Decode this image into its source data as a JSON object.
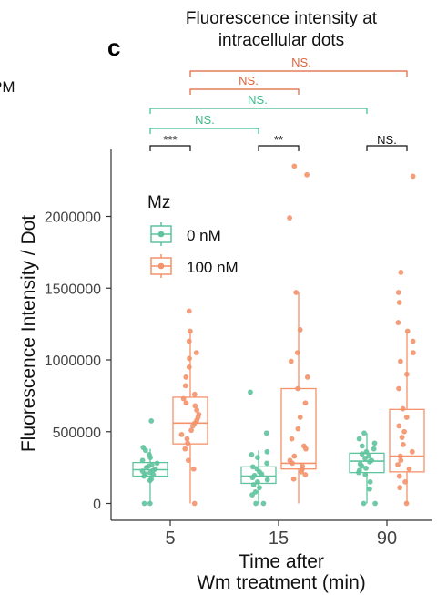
{
  "panel": {
    "letter": "c",
    "left_fragment": "PM"
  },
  "chart_data": {
    "type": "box",
    "title_lines": [
      "Fluorescence intensity at",
      "intracellular dots"
    ],
    "xlabel_lines": [
      "Time after",
      "Wm treatment (min)"
    ],
    "ylabel": "Fluorescence Intensity / Dot",
    "categories": [
      "5",
      "15",
      "90"
    ],
    "ylim": [
      -120000,
      2480000
    ],
    "yticks": [
      0,
      500000,
      1000000,
      1500000,
      2000000
    ],
    "ytick_labels": [
      "0",
      "500000",
      "1000000",
      "1500000",
      "2000000"
    ],
    "grid": false,
    "legend": {
      "title": "Mz",
      "placement": "upper-left inside plot",
      "entries": [
        {
          "label": "0 nM",
          "color": "#5fc39d"
        },
        {
          "label": "100 nM",
          "color": "#f4926a"
        }
      ]
    },
    "series": [
      {
        "name": "0 nM",
        "color": "#5fc39d",
        "boxes": [
          {
            "q1": 190000,
            "median": 235000,
            "q3": 285000,
            "whisker_low": 0,
            "whisker_high": 380000
          },
          {
            "q1": 140000,
            "median": 190000,
            "q3": 255000,
            "whisker_low": 0,
            "whisker_high": 370000
          },
          {
            "q1": 215000,
            "median": 295000,
            "q3": 350000,
            "whisker_low": 0,
            "whisker_high": 490000
          }
        ],
        "points": [
          [
            0,
            575000,
            390000,
            370000,
            340000,
            320000,
            300000,
            280000,
            270000,
            260000,
            250000,
            240000,
            230000,
            225000,
            215000,
            205000,
            200000,
            190000,
            170000,
            160000,
            0
          ],
          [
            775000,
            490000,
            360000,
            340000,
            320000,
            280000,
            255000,
            240000,
            220000,
            205000,
            195000,
            180000,
            165000,
            150000,
            130000,
            110000,
            80000,
            60000,
            0,
            0
          ],
          [
            490000,
            450000,
            420000,
            400000,
            380000,
            360000,
            345000,
            330000,
            315000,
            300000,
            290000,
            275000,
            260000,
            245000,
            230000,
            215000,
            200000,
            150000,
            100000,
            0,
            0
          ]
        ]
      },
      {
        "name": "100 nM",
        "color": "#f4926a",
        "boxes": [
          {
            "q1": 415000,
            "median": 560000,
            "q3": 740000,
            "whisker_low": 0,
            "whisker_high": 1200000
          },
          {
            "q1": 240000,
            "median": 280000,
            "q3": 800000,
            "whisker_low": 0,
            "whisker_high": 1470000
          },
          {
            "q1": 220000,
            "median": 330000,
            "q3": 655000,
            "whisker_low": 0,
            "whisker_high": 1200000
          }
        ],
        "points": [
          [
            1340000,
            1200000,
            1130000,
            1050000,
            1010000,
            950000,
            880000,
            820000,
            760000,
            730000,
            700000,
            680000,
            650000,
            620000,
            600000,
            580000,
            560000,
            540000,
            510000,
            480000,
            450000,
            420000,
            380000,
            300000,
            240000,
            0
          ],
          [
            2350000,
            2290000,
            1990000,
            1470000,
            1210000,
            1050000,
            990000,
            880000,
            800000,
            700000,
            600000,
            520000,
            450000,
            400000,
            380000,
            330000,
            300000,
            280000,
            260000,
            240000,
            220000,
            200000,
            170000
          ],
          [
            2280000,
            1610000,
            1470000,
            1400000,
            1260000,
            1200000,
            1130000,
            1050000,
            990000,
            900000,
            800000,
            660000,
            600000,
            540000,
            500000,
            460000,
            410000,
            360000,
            330000,
            300000,
            270000,
            240000,
            190000,
            150000,
            110000,
            0
          ]
        ]
      }
    ],
    "comparisons": [
      {
        "label": "NS.",
        "from": "5 · 100 nM",
        "to": "90 · 100 nM",
        "color": "#e0643a"
      },
      {
        "label": "NS.",
        "from": "5 · 100 nM",
        "to": "15 · 100 nM",
        "color": "#e0643a"
      },
      {
        "label": "NS.",
        "from": "5 · 0 nM",
        "to": "90 · 0 nM",
        "color": "#3dbb8c"
      },
      {
        "label": "NS.",
        "from": "5 · 0 nM",
        "to": "15 · 0 nM",
        "color": "#3dbb8c"
      },
      {
        "label": "***",
        "from": "5 · 0 nM",
        "to": "5 · 100 nM",
        "color": "#111111"
      },
      {
        "label": "**",
        "from": "15 · 0 nM",
        "to": "15 · 100 nM",
        "color": "#111111"
      },
      {
        "label": "NS.",
        "from": "90 · 0 nM",
        "to": "90 · 100 nM",
        "color": "#111111"
      }
    ]
  }
}
